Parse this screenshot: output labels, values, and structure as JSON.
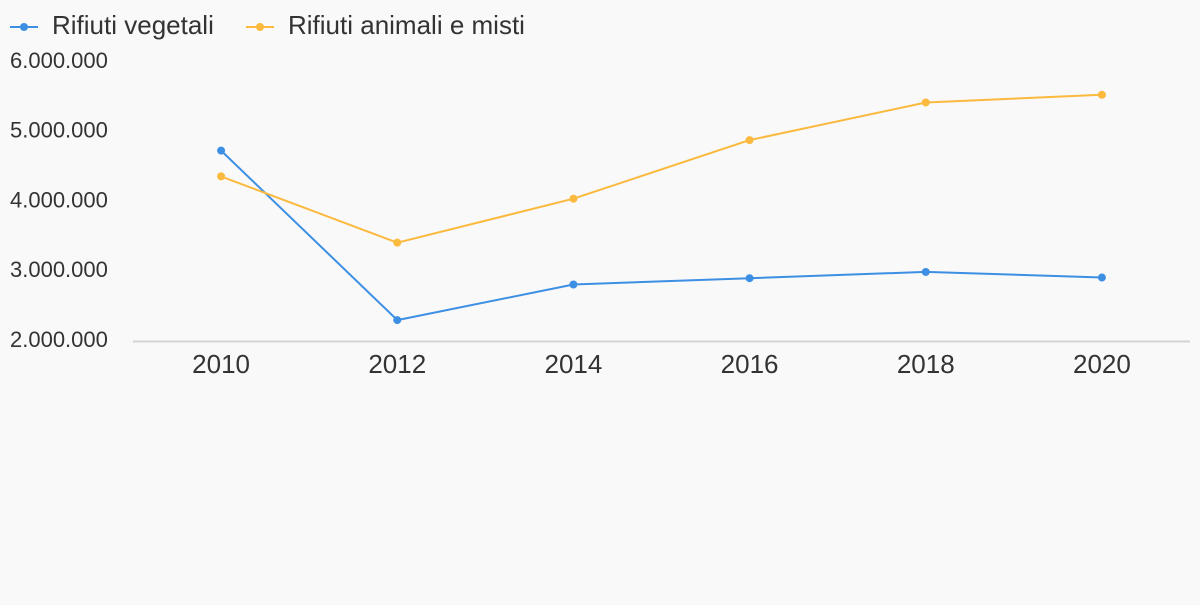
{
  "colors": {
    "background": "#f9f9f9",
    "axis_line": "#d4d4d4",
    "text": "#333333"
  },
  "chart_data": {
    "type": "line",
    "title": "",
    "xlabel": "",
    "ylabel": "",
    "x": [
      2010,
      2012,
      2014,
      2016,
      2018,
      2020
    ],
    "x_tick_labels": [
      "2010",
      "2012",
      "2014",
      "2016",
      "2018",
      "2020"
    ],
    "xlim": [
      2009,
      2021
    ],
    "ylim": [
      2000000,
      6000000
    ],
    "y_ticks": [
      2000000,
      3000000,
      4000000,
      5000000,
      6000000
    ],
    "y_tick_labels": [
      "2.000.000",
      "3.000.000",
      "4.000.000",
      "5.000.000",
      "6.000.000"
    ],
    "grid": false,
    "legend_position": "top-left",
    "series": [
      {
        "name": "Rifiuti vegetali",
        "color": "#3d8fe3",
        "values": [
          4730000,
          2300000,
          2810000,
          2900000,
          2990000,
          2910000
        ]
      },
      {
        "name": "Rifiuti animali e misti",
        "color": "#fbb93e",
        "values": [
          4360000,
          3410000,
          4040000,
          4880000,
          5420000,
          5530000
        ]
      }
    ]
  }
}
